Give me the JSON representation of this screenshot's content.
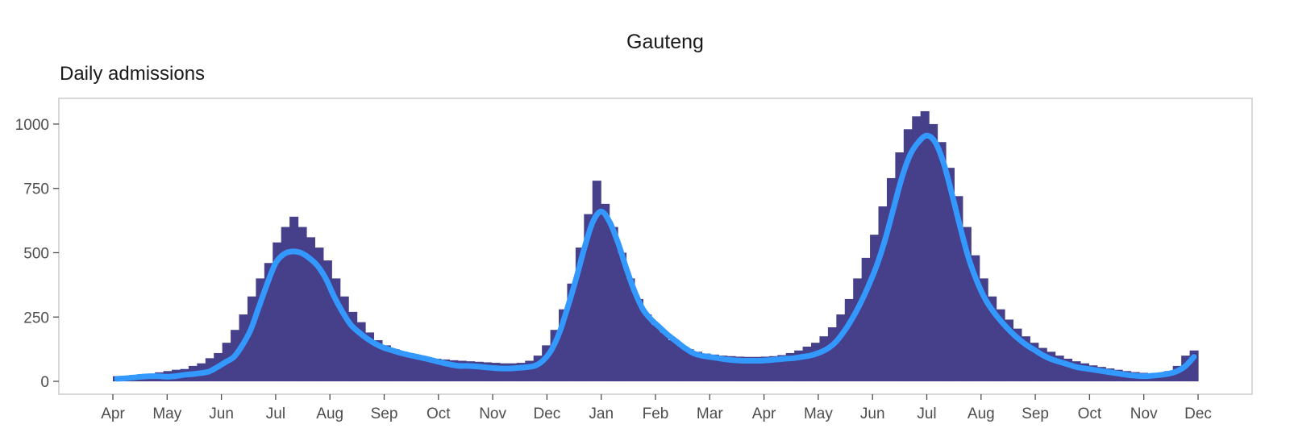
{
  "chart_data": {
    "type": "bar",
    "title": "Gauteng",
    "subtitle": "Daily admissions",
    "xlabel": "",
    "ylabel": "",
    "ylim": [
      -50,
      1100
    ],
    "y_ticks": [
      0,
      250,
      500,
      750,
      1000
    ],
    "x_ticks": [
      "Apr",
      "May",
      "Jun",
      "Jul",
      "Aug",
      "Sep",
      "Oct",
      "Nov",
      "Dec",
      "Jan",
      "Feb",
      "Mar",
      "Apr",
      "May",
      "Jun",
      "Jul",
      "Aug",
      "Sep",
      "Oct",
      "Nov",
      "Dec"
    ],
    "period": "weekly periods, Apr 2020 – Nov 2021",
    "grid": false,
    "colors": {
      "bars": "#463f89",
      "smooth_line": "#3399ff",
      "panel_border": "#cccccc"
    },
    "series": [
      {
        "type": "bar",
        "values": [
          20,
          22,
          25,
          28,
          30,
          35,
          40,
          45,
          48,
          60,
          70,
          90,
          110,
          150,
          200,
          260,
          330,
          400,
          460,
          540,
          600,
          640,
          600,
          560,
          520,
          470,
          400,
          330,
          270,
          230,
          190,
          160,
          140,
          125,
          115,
          105,
          98,
          92,
          88,
          85,
          82,
          80,
          78,
          76,
          74,
          72,
          70,
          70,
          72,
          80,
          100,
          140,
          200,
          280,
          380,
          520,
          650,
          780,
          690,
          600,
          500,
          400,
          320,
          260,
          220,
          190,
          160,
          140,
          125,
          115,
          108,
          104,
          100,
          98,
          96,
          95,
          95,
          96,
          98,
          102,
          110,
          120,
          135,
          150,
          175,
          210,
          260,
          320,
          400,
          480,
          570,
          680,
          790,
          890,
          980,
          1030,
          1050,
          1000,
          930,
          830,
          720,
          600,
          490,
          400,
          330,
          280,
          240,
          205,
          175,
          150,
          130,
          115,
          100,
          88,
          78,
          70,
          62,
          56,
          50,
          45,
          40,
          36,
          33,
          31,
          33,
          40,
          60,
          100,
          120
        ]
      },
      {
        "type": "line",
        "values": [
          10,
          12,
          15,
          18,
          20,
          20,
          18,
          20,
          25,
          28,
          32,
          38,
          55,
          75,
          95,
          140,
          200,
          290,
          380,
          460,
          495,
          505,
          500,
          480,
          450,
          400,
          330,
          270,
          220,
          190,
          165,
          145,
          130,
          120,
          110,
          102,
          95,
          88,
          80,
          72,
          65,
          60,
          60,
          58,
          55,
          52,
          50,
          50,
          52,
          55,
          60,
          80,
          120,
          190,
          290,
          400,
          520,
          620,
          660,
          620,
          540,
          440,
          350,
          280,
          240,
          210,
          180,
          155,
          130,
          110,
          100,
          95,
          90,
          85,
          82,
          80,
          80,
          80,
          82,
          85,
          88,
          90,
          95,
          100,
          110,
          125,
          150,
          190,
          240,
          300,
          370,
          450,
          550,
          670,
          790,
          880,
          930,
          955,
          930,
          850,
          730,
          600,
          480,
          390,
          320,
          270,
          230,
          195,
          165,
          140,
          120,
          100,
          85,
          75,
          65,
          55,
          50,
          45,
          40,
          35,
          30,
          25,
          22,
          20,
          22,
          25,
          30,
          40,
          60,
          95
        ]
      }
    ]
  }
}
